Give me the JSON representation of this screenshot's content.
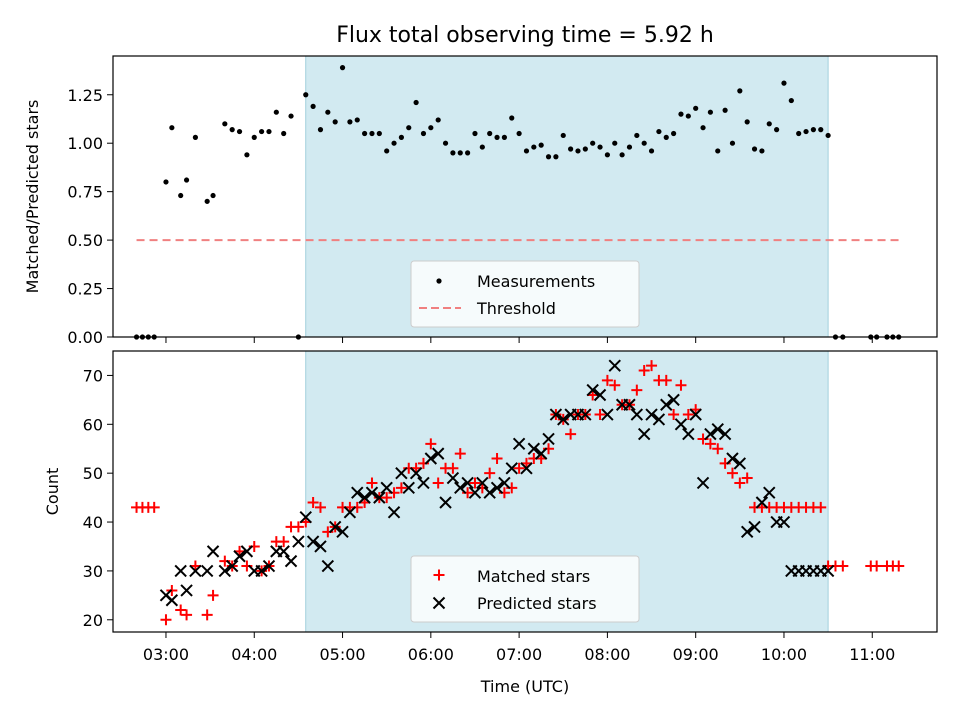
{
  "chart_data": [
    {
      "type": "scatter",
      "title": "Flux total observing time = 5.92 h",
      "xlabel": "",
      "ylabel": "Matched/Predicted stars",
      "xlim": [
        "02:24",
        "11:44"
      ],
      "ylim": [
        0,
        1.45
      ],
      "x_tick_labels": [
        "03:00",
        "04:00",
        "05:00",
        "06:00",
        "07:00",
        "08:00",
        "09:00",
        "10:00",
        "11:00"
      ],
      "x_tick_labels_visible": false,
      "y_ticks": [
        0,
        0.25,
        0.5,
        0.75,
        1.0,
        1.25
      ],
      "y_tick_labels": [
        "0.00",
        "0.25",
        "0.50",
        "0.75",
        "1.00",
        "1.25"
      ],
      "observing_window": [
        "04:35",
        "10:30"
      ],
      "threshold": {
        "name": "Threshold",
        "value": 0.5,
        "x": [
          "02:40",
          "11:18"
        ],
        "style": "dashed",
        "color": "#f08080"
      },
      "series": [
        {
          "name": "Measurements",
          "color": "#000000",
          "marker": "dot",
          "x": [
            "02:40",
            "02:44",
            "02:48",
            "02:52",
            "03:00",
            "03:04",
            "03:10",
            "03:14",
            "03:20",
            "03:28",
            "03:32",
            "03:40",
            "03:45",
            "03:50",
            "03:55",
            "04:00",
            "04:05",
            "04:10",
            "04:15",
            "04:20",
            "04:25",
            "04:30",
            "04:35",
            "04:40",
            "04:45",
            "04:50",
            "04:55",
            "05:00",
            "05:05",
            "05:10",
            "05:15",
            "05:20",
            "05:25",
            "05:30",
            "05:35",
            "05:40",
            "05:45",
            "05:50",
            "05:55",
            "06:00",
            "06:05",
            "06:10",
            "06:15",
            "06:20",
            "06:25",
            "06:30",
            "06:35",
            "06:40",
            "06:45",
            "06:50",
            "06:55",
            "07:00",
            "07:05",
            "07:10",
            "07:15",
            "07:20",
            "07:25",
            "07:30",
            "07:35",
            "07:40",
            "07:45",
            "07:50",
            "07:55",
            "08:00",
            "08:05",
            "08:10",
            "08:15",
            "08:20",
            "08:25",
            "08:30",
            "08:35",
            "08:40",
            "08:45",
            "08:50",
            "08:55",
            "09:00",
            "09:05",
            "09:10",
            "09:15",
            "09:20",
            "09:25",
            "09:30",
            "09:35",
            "09:40",
            "09:45",
            "09:50",
            "09:55",
            "10:00",
            "10:05",
            "10:10",
            "10:15",
            "10:20",
            "10:25",
            "10:30",
            "10:35",
            "10:40",
            "10:59",
            "11:03",
            "11:10",
            "11:14",
            "11:18"
          ],
          "values": [
            0,
            0,
            0,
            0,
            0.8,
            1.08,
            0.73,
            0.81,
            1.03,
            0.7,
            0.73,
            1.1,
            1.07,
            1.06,
            0.94,
            1.03,
            1.06,
            1.06,
            1.16,
            1.05,
            1.14,
            0,
            1.25,
            1.19,
            1.07,
            1.16,
            1.11,
            1.39,
            1.11,
            1.12,
            1.05,
            1.05,
            1.05,
            0.96,
            1.0,
            1.03,
            1.08,
            1.21,
            1.05,
            1.08,
            1.12,
            1.0,
            0.95,
            0.95,
            0.95,
            1.05,
            0.98,
            1.05,
            1.03,
            1.03,
            1.13,
            1.05,
            0.96,
            0.98,
            0.99,
            0.93,
            0.93,
            1.04,
            0.97,
            0.96,
            0.97,
            1.0,
            0.98,
            0.94,
            1.0,
            0.94,
            0.98,
            1.04,
            1.0,
            0.96,
            1.06,
            1.03,
            1.05,
            1.15,
            1.14,
            1.18,
            1.08,
            1.16,
            0.96,
            1.17,
            1.0,
            1.27,
            1.11,
            0.97,
            0.96,
            1.1,
            1.07,
            1.31,
            1.22,
            1.05,
            1.06,
            1.07,
            1.07,
            1.04,
            0,
            0,
            0,
            0,
            0,
            0,
            0
          ]
        }
      ],
      "legend": [
        "Measurements",
        "Threshold"
      ],
      "legend_loc": "lower center"
    },
    {
      "type": "scatter",
      "title": "",
      "xlabel": "Time (UTC)",
      "ylabel": "Count",
      "xlim": [
        "02:24",
        "11:44"
      ],
      "ylim": [
        17.5,
        75
      ],
      "x_tick_labels": [
        "03:00",
        "04:00",
        "05:00",
        "06:00",
        "07:00",
        "08:00",
        "09:00",
        "10:00",
        "11:00"
      ],
      "y_ticks": [
        20,
        30,
        40,
        50,
        60,
        70
      ],
      "y_tick_labels": [
        "20",
        "30",
        "40",
        "50",
        "60",
        "70"
      ],
      "observing_window": [
        "04:35",
        "10:30"
      ],
      "series": [
        {
          "name": "Matched stars",
          "color": "#ff0000",
          "marker": "plus",
          "x": [
            "02:40",
            "02:44",
            "02:48",
            "02:52",
            "03:00",
            "03:04",
            "03:10",
            "03:14",
            "03:20",
            "03:28",
            "03:32",
            "03:40",
            "03:45",
            "03:50",
            "03:55",
            "04:00",
            "04:05",
            "04:10",
            "04:15",
            "04:20",
            "04:25",
            "04:30",
            "04:35",
            "04:40",
            "04:45",
            "04:50",
            "04:55",
            "05:00",
            "05:05",
            "05:10",
            "05:15",
            "05:20",
            "05:25",
            "05:30",
            "05:35",
            "05:40",
            "05:45",
            "05:50",
            "05:55",
            "06:00",
            "06:05",
            "06:10",
            "06:15",
            "06:20",
            "06:25",
            "06:30",
            "06:35",
            "06:40",
            "06:45",
            "06:50",
            "06:55",
            "07:00",
            "07:05",
            "07:10",
            "07:15",
            "07:20",
            "07:25",
            "07:30",
            "07:35",
            "07:40",
            "07:45",
            "07:50",
            "07:55",
            "08:00",
            "08:05",
            "08:10",
            "08:15",
            "08:20",
            "08:25",
            "08:30",
            "08:35",
            "08:40",
            "08:45",
            "08:50",
            "08:55",
            "09:00",
            "09:05",
            "09:10",
            "09:15",
            "09:20",
            "09:25",
            "09:30",
            "09:35",
            "09:40",
            "09:45",
            "09:50",
            "09:55",
            "10:00",
            "10:05",
            "10:10",
            "10:15",
            "10:20",
            "10:25",
            "10:30",
            "10:35",
            "10:40",
            "10:59",
            "11:03",
            "11:10",
            "11:14",
            "11:18"
          ],
          "values": [
            43,
            43,
            43,
            43,
            20,
            26,
            22,
            21,
            31,
            21,
            25,
            32,
            31,
            34,
            31,
            35,
            30,
            31,
            36,
            36,
            39,
            39,
            40,
            44,
            43,
            38,
            39,
            43,
            43,
            43,
            44,
            48,
            45,
            45,
            46,
            47,
            51,
            51,
            52,
            56,
            48,
            51,
            51,
            54,
            46,
            48,
            47,
            50,
            53,
            46,
            47,
            51,
            52,
            53,
            53,
            55,
            62,
            61,
            58,
            62,
            62,
            66,
            62,
            69,
            68,
            64,
            64,
            67,
            71,
            72,
            69,
            69,
            62,
            68,
            62,
            63,
            57,
            56,
            55,
            52,
            50,
            48,
            49,
            43,
            43,
            43,
            43,
            43,
            43,
            43,
            43,
            43,
            43,
            31,
            31,
            31,
            31,
            31,
            31,
            31,
            31
          ],
          "note": ""
        },
        {
          "name": "Predicted stars",
          "color": "#000000",
          "marker": "x",
          "x": [
            "03:00",
            "03:04",
            "03:10",
            "03:14",
            "03:20",
            "03:28",
            "03:32",
            "03:40",
            "03:45",
            "03:50",
            "03:55",
            "04:00",
            "04:05",
            "04:10",
            "04:15",
            "04:20",
            "04:25",
            "04:30",
            "04:35",
            "04:40",
            "04:45",
            "04:50",
            "04:55",
            "05:00",
            "05:05",
            "05:10",
            "05:15",
            "05:20",
            "05:25",
            "05:30",
            "05:35",
            "05:40",
            "05:45",
            "05:50",
            "05:55",
            "06:00",
            "06:05",
            "06:10",
            "06:15",
            "06:20",
            "06:25",
            "06:30",
            "06:35",
            "06:40",
            "06:45",
            "06:50",
            "06:55",
            "07:00",
            "07:05",
            "07:10",
            "07:15",
            "07:20",
            "07:25",
            "07:30",
            "07:35",
            "07:40",
            "07:45",
            "07:50",
            "07:55",
            "08:00",
            "08:05",
            "08:10",
            "08:15",
            "08:20",
            "08:25",
            "08:30",
            "08:35",
            "08:40",
            "08:45",
            "08:50",
            "08:55",
            "09:00",
            "09:05",
            "09:10",
            "09:15",
            "09:20",
            "09:25",
            "09:30",
            "09:35",
            "09:40",
            "09:45",
            "09:50",
            "09:55",
            "10:00",
            "10:05",
            "10:10",
            "10:15",
            "10:20",
            "10:25",
            "10:30"
          ],
          "values": [
            25,
            24,
            30,
            26,
            30,
            30,
            34,
            30,
            31,
            33,
            34,
            30,
            30,
            31,
            34,
            34,
            32,
            36,
            41,
            36,
            35,
            31,
            39,
            38,
            42,
            46,
            45,
            46,
            45,
            47,
            42,
            50,
            47,
            50,
            48,
            53,
            54,
            44,
            49,
            47,
            48,
            46,
            48,
            46,
            47,
            48,
            51,
            56,
            51,
            55,
            54,
            57,
            62,
            61,
            62,
            62,
            62,
            67,
            66,
            62,
            72,
            64,
            64,
            62,
            58,
            62,
            61,
            64,
            65,
            60,
            58,
            62,
            48,
            58,
            59,
            58,
            53,
            52,
            38,
            39,
            44,
            46,
            40,
            40,
            30,
            30,
            30,
            30,
            30,
            30
          ],
          "note": ""
        }
      ],
      "legend": [
        "Matched stars",
        "Predicted stars"
      ],
      "legend_loc": "lower center"
    }
  ],
  "colors": {
    "observing_window": "#add8e6",
    "threshold": "#f08080",
    "matched": "#ff0000",
    "predicted": "#000000"
  }
}
